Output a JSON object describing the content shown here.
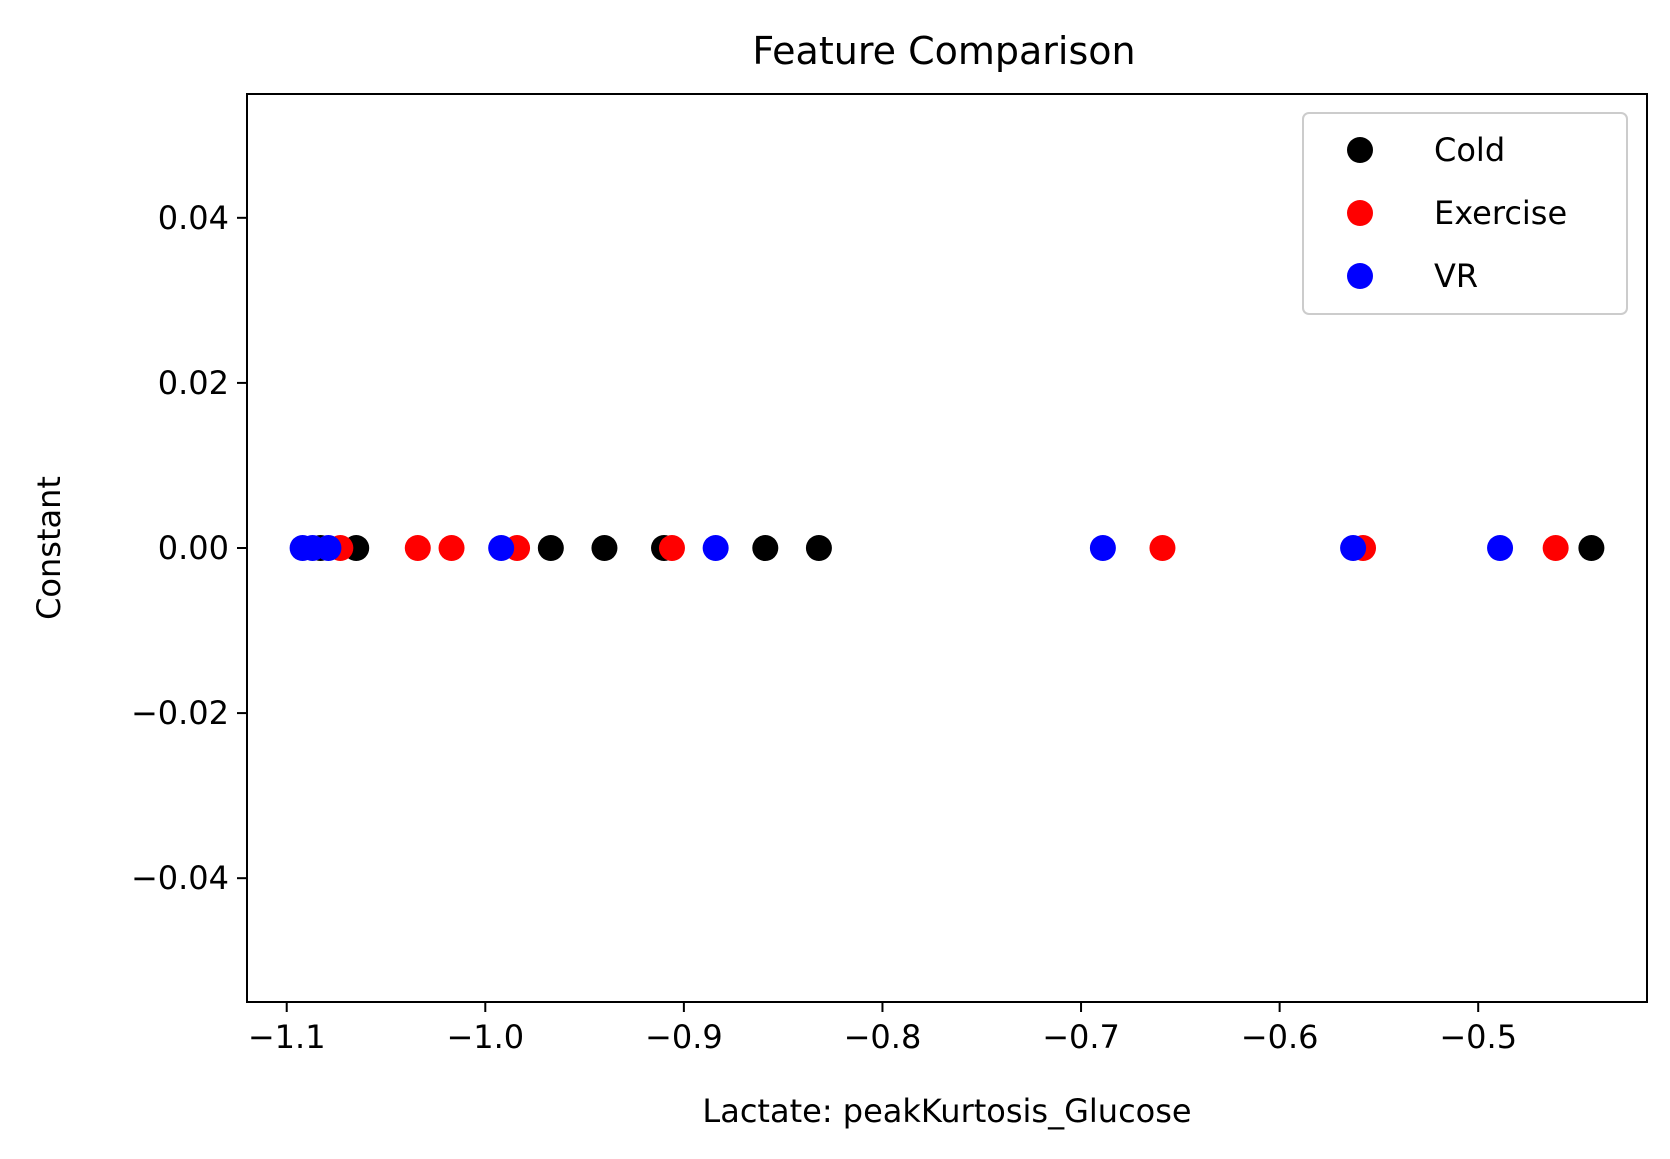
{
  "chart_data": {
    "type": "scatter",
    "title": "Feature Comparison",
    "xlabel": "Lactate: peakKurtosis_Glucose",
    "ylabel": "Constant",
    "xlim": [
      -1.12,
      -0.415
    ],
    "ylim": [
      -0.055,
      0.055
    ],
    "x_ticks": [
      -1.1,
      -1.0,
      -0.9,
      -0.8,
      -0.7,
      -0.6,
      -0.5
    ],
    "x_tick_labels": [
      "−1.1",
      "−1.0",
      "−0.9",
      "−0.8",
      "−0.7",
      "−0.6",
      "−0.5"
    ],
    "y_ticks": [
      0.04,
      0.02,
      0.0,
      -0.02,
      -0.04
    ],
    "y_tick_labels": [
      "0.04",
      "0.02",
      "0.00",
      "−0.02",
      "−0.04"
    ],
    "grid": false,
    "legend_position": "top-right",
    "series": [
      {
        "name": "Cold",
        "color": "#000000",
        "points": [
          {
            "x": -1.083,
            "y": 0
          },
          {
            "x": -1.065,
            "y": 0
          },
          {
            "x": -0.967,
            "y": 0
          },
          {
            "x": -0.94,
            "y": 0
          },
          {
            "x": -0.91,
            "y": 0
          },
          {
            "x": -0.859,
            "y": 0
          },
          {
            "x": -0.832,
            "y": 0
          },
          {
            "x": -0.443,
            "y": 0
          }
        ]
      },
      {
        "name": "Exercise",
        "color": "#ff0000",
        "points": [
          {
            "x": -1.073,
            "y": 0
          },
          {
            "x": -1.034,
            "y": 0
          },
          {
            "x": -1.017,
            "y": 0
          },
          {
            "x": -0.984,
            "y": 0
          },
          {
            "x": -0.906,
            "y": 0
          },
          {
            "x": -0.659,
            "y": 0
          },
          {
            "x": -0.558,
            "y": 0
          },
          {
            "x": -0.461,
            "y": 0
          }
        ]
      },
      {
        "name": "VR",
        "color": "#0000ff",
        "points": [
          {
            "x": -1.092,
            "y": 0
          },
          {
            "x": -1.087,
            "y": 0
          },
          {
            "x": -1.079,
            "y": 0
          },
          {
            "x": -0.992,
            "y": 0
          },
          {
            "x": -0.884,
            "y": 0
          },
          {
            "x": -0.689,
            "y": 0
          },
          {
            "x": -0.563,
            "y": 0
          },
          {
            "x": -0.489,
            "y": 0
          }
        ]
      }
    ]
  }
}
